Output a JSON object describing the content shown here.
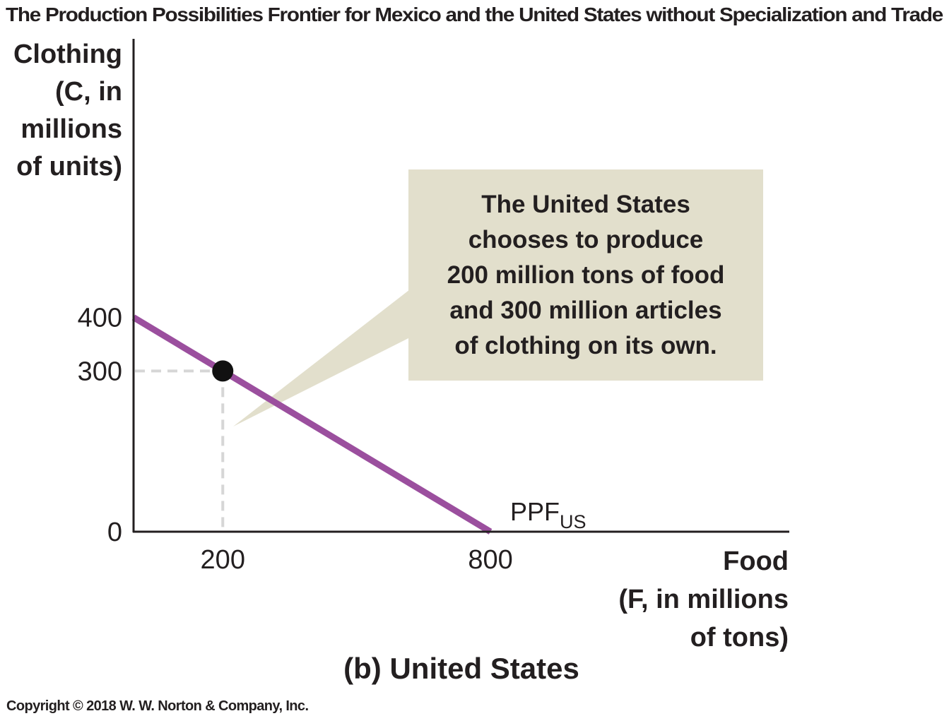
{
  "chart_data": {
    "type": "line",
    "title": "The Production Possibilities Frontier for Mexico and the United States without Specialization and Trade",
    "panel_label": "(b) United States",
    "ylabel": [
      "Clothing",
      "(C, in",
      "millions",
      "of units)"
    ],
    "xlabel": [
      "Food",
      "(F, in millions",
      "of tons)"
    ],
    "xlim": [
      0,
      1470
    ],
    "ylim": [
      0,
      920
    ],
    "x_ticks": [
      {
        "value": 200,
        "label": "200"
      },
      {
        "value": 800,
        "label": "800"
      }
    ],
    "y_ticks": [
      {
        "value": 0,
        "label": "0"
      },
      {
        "value": 300,
        "label": "300"
      },
      {
        "value": 400,
        "label": "400"
      }
    ],
    "series": [
      {
        "name": "PPF",
        "name_subscript": "US",
        "color": "#9b4f9e",
        "x": [
          0,
          800
        ],
        "y": [
          400,
          0
        ]
      }
    ],
    "point": {
      "x": 200,
      "y": 300,
      "color": "#111111"
    },
    "annotation": {
      "lines": [
        "The United States",
        "chooses to produce",
        "200 million tons of food",
        "and 300 million articles",
        "of clothing on its own."
      ],
      "background": "#e2dfcc"
    },
    "guide_color": "#d6d6d6",
    "axis_color": "#231f20",
    "grid": false
  },
  "copyright": "Copyright © 2018 W. W. Norton & Company, Inc."
}
